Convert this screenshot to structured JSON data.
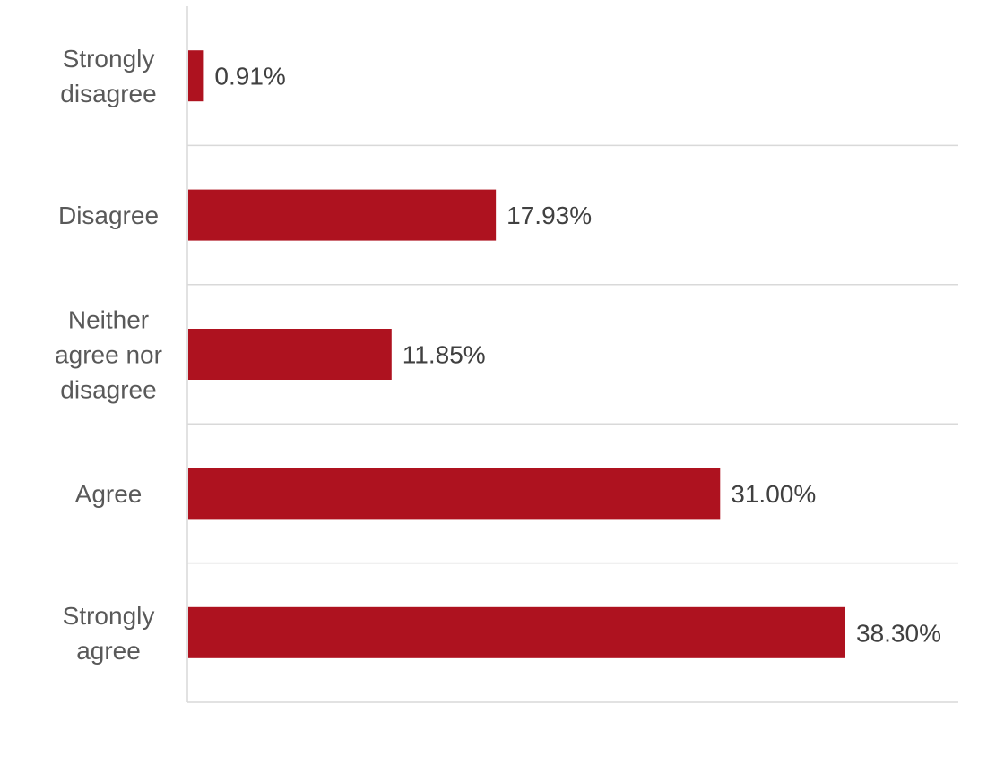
{
  "chart_data": {
    "type": "bar",
    "orientation": "horizontal",
    "title": "",
    "xlabel": "",
    "ylabel": "",
    "categories": [
      "Strongly disagree",
      "Disagree",
      "Neither agree nor disagree",
      "Agree",
      "Strongly agree"
    ],
    "category_label_lines": [
      [
        "Strongly",
        "disagree"
      ],
      [
        "Disagree"
      ],
      [
        "Neither",
        "agree nor",
        "disagree"
      ],
      [
        "Agree"
      ],
      [
        "Strongly",
        "agree"
      ]
    ],
    "values": [
      0.91,
      17.93,
      11.85,
      31.0,
      38.3
    ],
    "value_labels": [
      "0.91%",
      "17.93%",
      "11.85%",
      "31.00%",
      "38.30%"
    ],
    "xlim": [
      0,
      45
    ],
    "grid": true,
    "legend": "none",
    "bar_color": "#ae121f"
  }
}
